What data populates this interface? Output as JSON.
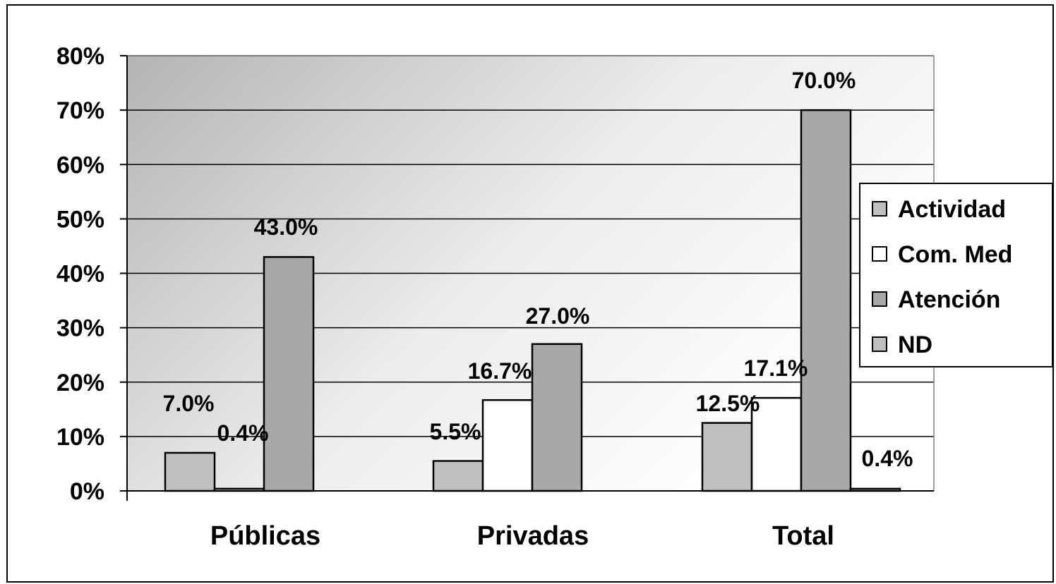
{
  "chart_data": {
    "type": "bar",
    "title": "",
    "xlabel": "",
    "ylabel": "",
    "categories": [
      "Públicas",
      "Privadas",
      "Total"
    ],
    "series": [
      {
        "name": "Actividad",
        "values": [
          7.0,
          5.5,
          12.5
        ],
        "labels": [
          "7.0%",
          "5.5%",
          "12.5%"
        ],
        "color": "#c0c0c0"
      },
      {
        "name": "Com. Med",
        "values": [
          0.4,
          16.7,
          17.1
        ],
        "labels": [
          "0.4%",
          "16.7%",
          "17.1%"
        ],
        "color": "#ffffff"
      },
      {
        "name": "Atención",
        "values": [
          43.0,
          27.0,
          70.0
        ],
        "labels": [
          "43.0%",
          "27.0%",
          "70.0%"
        ],
        "color": "#a8a8a8"
      },
      {
        "name": "ND",
        "values": [
          null,
          null,
          0.4
        ],
        "labels": [
          null,
          null,
          "0.4%"
        ],
        "color": "#c0c0c0"
      }
    ],
    "ylim": [
      0,
      80
    ],
    "yticks": [
      0,
      10,
      20,
      30,
      40,
      50,
      60,
      70,
      80
    ],
    "ytick_labels": [
      "0%",
      "10%",
      "20%",
      "30%",
      "40%",
      "50%",
      "60%",
      "70%",
      "80%"
    ],
    "grid": true,
    "legend_position": "right",
    "plot_background": "gradient-gray"
  }
}
